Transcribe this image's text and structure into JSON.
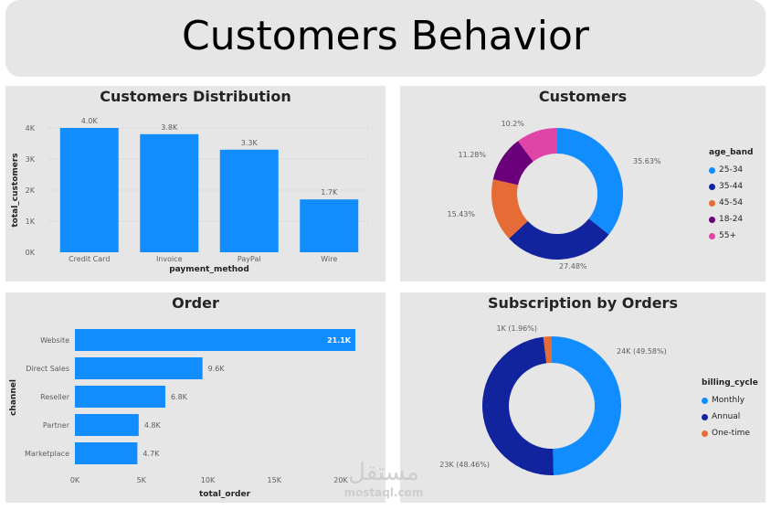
{
  "page_title": "Customers Behavior",
  "colors": {
    "bar": "#118dff",
    "panel_bg": "#e6e6e6",
    "age_25_34": "#118dff",
    "age_35_44": "#12239e",
    "age_45_54": "#e66c37",
    "age_18_24": "#6b007b",
    "age_55_plus": "#e044a7",
    "monthly": "#118dff",
    "annual": "#12239e",
    "one_time": "#e66c37"
  },
  "watermark": {
    "arabic": "مستقل",
    "latin": "mostaql.com"
  },
  "chart_data": [
    {
      "id": "customers_distribution",
      "type": "bar",
      "title": "Customers Distribution",
      "xlabel": "payment_method",
      "ylabel": "total_customers",
      "categories": [
        "Credit Card",
        "Invoice",
        "PayPal",
        "Wire"
      ],
      "values": [
        4000,
        3800,
        3300,
        1700
      ],
      "data_labels": [
        "4.0K",
        "3.8K",
        "3.3K",
        "1.7K"
      ],
      "yticks": [
        0,
        1000,
        2000,
        3000,
        4000
      ],
      "ytick_labels": [
        "0K",
        "1K",
        "2K",
        "3K",
        "4K"
      ],
      "ylim": [
        0,
        4000
      ],
      "grid": true
    },
    {
      "id": "customers",
      "type": "pie",
      "donut": true,
      "title": "Customers",
      "legend_title": "age_band",
      "legend_position": "right",
      "labels": [
        "25-34",
        "35-44",
        "45-54",
        "18-24",
        "55+"
      ],
      "values": [
        35.63,
        27.48,
        15.43,
        11.28,
        10.2
      ],
      "data_labels": [
        "35.63%",
        "27.48%",
        "15.43%",
        "11.28%",
        "10.2%"
      ]
    },
    {
      "id": "order",
      "type": "bar",
      "orientation": "horizontal",
      "title": "Order",
      "xlabel": "total_order",
      "ylabel": "channel",
      "categories": [
        "Website",
        "Direct Sales",
        "Reseller",
        "Partner",
        "Marketplace"
      ],
      "values": [
        21100,
        9600,
        6800,
        4800,
        4700
      ],
      "data_labels": [
        "21.1K",
        "9.6K",
        "6.8K",
        "4.8K",
        "4.7K"
      ],
      "xticks": [
        0,
        5000,
        10000,
        15000,
        20000
      ],
      "xtick_labels": [
        "0K",
        "5K",
        "10K",
        "15K",
        "20K"
      ],
      "xlim": [
        0,
        21100
      ]
    },
    {
      "id": "subscription_by_orders",
      "type": "pie",
      "donut": true,
      "title": "Subscription by Orders",
      "legend_title": "billing_cycle",
      "legend_position": "right",
      "labels": [
        "Monthly",
        "Annual",
        "One-time"
      ],
      "values": [
        49.58,
        48.46,
        1.96
      ],
      "data_labels": [
        "24K (49.58%)",
        "23K (48.46%)",
        "1K (1.96%)"
      ]
    }
  ]
}
